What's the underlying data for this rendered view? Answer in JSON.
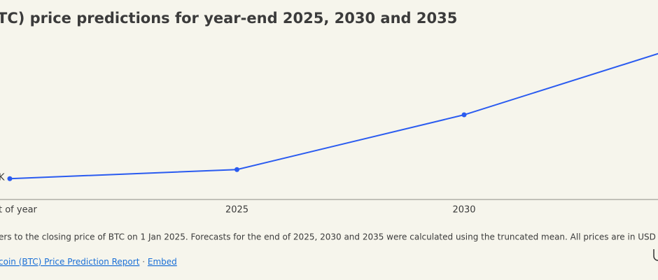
{
  "chart_data": {
    "type": "line",
    "title": "TC) price predictions for year-end 2025, 2030 and 2035",
    "categories": [
      "t of year",
      "2025",
      "2030",
      null
    ],
    "series": [
      {
        "name": null,
        "color": "#2a5bf0",
        "values": [
          94,
          135,
          382,
          705
        ]
      }
    ],
    "ylim": [
      0,
      900
    ],
    "annotations": [
      "K"
    ],
    "footnote": "ers to the closing price of BTC on 1 Jan 2025. Forecasts for the end of 2025, 2030 and 2035 were calculated using the truncated mean. All prices are in USD per",
    "source_link": "coin (BTC) Price Prediction Report",
    "separator": "·",
    "embed_link": "Embed"
  }
}
